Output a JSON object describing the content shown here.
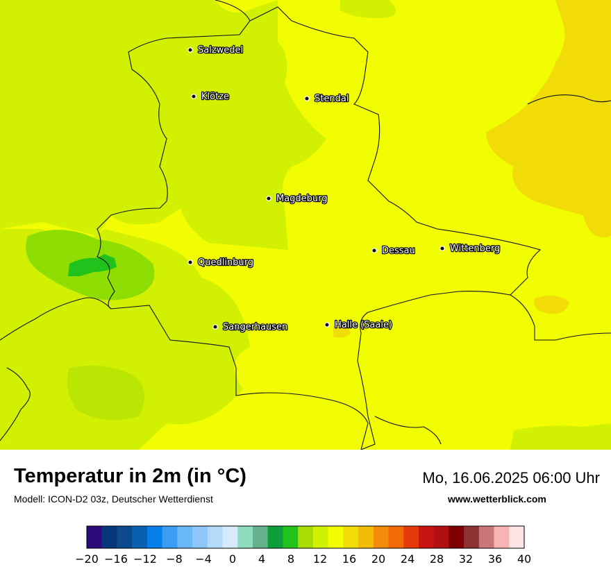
{
  "header": {
    "title": "Temperatur in 2m (in °C)",
    "subtitle": "Modell: ICON-D2 03z, Deutscher Wetterdienst",
    "datetime": "Mo, 16.06.2025 06:00 Uhr",
    "website": "www.wetterblick.com"
  },
  "map": {
    "cities": [
      {
        "name": "Salzwedel"
      },
      {
        "name": "Klötze"
      },
      {
        "name": "Stendal"
      },
      {
        "name": "Magdeburg"
      },
      {
        "name": "Dessau"
      },
      {
        "name": "Wittenberg"
      },
      {
        "name": "Quedlinburg"
      },
      {
        "name": "Sangerhausen"
      },
      {
        "name": "Halle (Saale)"
      }
    ]
  },
  "legend": {
    "ticks": [
      "−20",
      "−16",
      "−12",
      "−8",
      "−4",
      "0",
      "4",
      "8",
      "12",
      "16",
      "20",
      "24",
      "28",
      "32",
      "36",
      "40"
    ],
    "colors": [
      "#2e0a7d",
      "#08367a",
      "#0b4a8c",
      "#0a5fb0",
      "#0780e8",
      "#3a9cf2",
      "#6bb7f5",
      "#8ec7f7",
      "#b4dafa",
      "#d6eafc",
      "#90dcc0",
      "#66b28c",
      "#0e9e3a",
      "#22c21c",
      "#a8dc05",
      "#d2f002",
      "#f1fd00",
      "#f1dc08",
      "#f2bc08",
      "#f28c0a",
      "#f26a06",
      "#e63a0a",
      "#c91414",
      "#b01010",
      "#7e0000",
      "#8c3232",
      "#c87878",
      "#f8b4b4",
      "#fde4e4"
    ]
  }
}
